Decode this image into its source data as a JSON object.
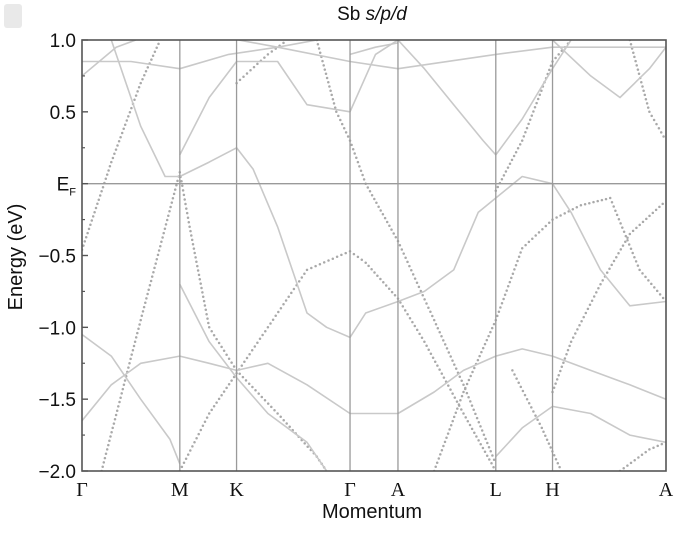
{
  "chart_data": {
    "type": "line",
    "title_main": "Sb ",
    "title_italic": "s/p/d",
    "xlabel": "Momentum",
    "ylabel": "Energy (eV)",
    "ylim": [
      -2.0,
      1.0
    ],
    "yticks": [
      {
        "value": 1.0,
        "label": "1.0"
      },
      {
        "value": 0.5,
        "label": "0.5"
      },
      {
        "value": 0.0,
        "label": "E",
        "sub": "F"
      },
      {
        "value": -0.5,
        "label": "−0.5"
      },
      {
        "value": -1.0,
        "label": "−1.0"
      },
      {
        "value": -1.5,
        "label": "−1.5"
      },
      {
        "value": -2.0,
        "label": "−2.0"
      }
    ],
    "kpoints": [
      {
        "label": "Γ",
        "x": 0.0
      },
      {
        "label": "M",
        "x": 1.0
      },
      {
        "label": "K",
        "x": 1.58
      },
      {
        "label": "Γ",
        "x": 2.74
      },
      {
        "label": "A",
        "x": 3.23
      },
      {
        "label": "L",
        "x": 4.23
      },
      {
        "label": "H",
        "x": 4.81
      },
      {
        "label": "A",
        "x": 5.97
      }
    ],
    "fermi_level": 0.0,
    "bands": [
      {
        "style": "dot",
        "points": [
          [
            0,
            -0.46
          ],
          [
            0.3,
            0.15
          ],
          [
            0.6,
            0.7
          ],
          [
            0.8,
            1.0
          ]
        ]
      },
      {
        "style": "dot",
        "points": [
          [
            0.2,
            -2.0
          ],
          [
            0.6,
            -0.95
          ],
          [
            1.0,
            0.08
          ],
          [
            1.1,
            -0.3
          ],
          [
            1.3,
            -1.0
          ],
          [
            1.58,
            -1.3
          ],
          [
            2.0,
            -1.6
          ],
          [
            2.4,
            -1.9
          ],
          [
            2.5,
            -2.0
          ]
        ]
      },
      {
        "style": "dot",
        "points": [
          [
            1.0,
            -2.0
          ],
          [
            1.3,
            -1.6
          ],
          [
            1.58,
            -1.32
          ],
          [
            1.9,
            -1.0
          ],
          [
            2.3,
            -0.6
          ],
          [
            2.74,
            -0.47
          ],
          [
            2.9,
            -0.55
          ],
          [
            3.23,
            -0.8
          ],
          [
            3.5,
            -1.1
          ],
          [
            3.9,
            -1.6
          ],
          [
            4.23,
            -2.0
          ]
        ]
      },
      {
        "style": "dot",
        "points": [
          [
            1.58,
            0.7
          ],
          [
            1.9,
            0.9
          ],
          [
            2.1,
            1.0
          ]
        ]
      },
      {
        "style": "dot",
        "points": [
          [
            2.4,
            1.0
          ],
          [
            2.6,
            0.5
          ],
          [
            2.74,
            0.3
          ],
          [
            2.9,
            0.0
          ],
          [
            3.23,
            -0.4
          ],
          [
            3.6,
            -0.95
          ],
          [
            3.9,
            -1.4
          ],
          [
            4.23,
            -1.95
          ]
        ]
      },
      {
        "style": "dot",
        "points": [
          [
            3.6,
            -2.0
          ],
          [
            3.9,
            -1.45
          ],
          [
            4.23,
            -0.95
          ],
          [
            4.5,
            -0.45
          ],
          [
            4.81,
            -0.25
          ],
          [
            5.1,
            -0.15
          ],
          [
            5.4,
            -0.1
          ],
          [
            5.7,
            -0.6
          ],
          [
            5.97,
            -0.82
          ]
        ]
      },
      {
        "style": "dot",
        "points": [
          [
            4.23,
            -0.05
          ],
          [
            4.5,
            0.3
          ],
          [
            4.81,
            0.85
          ],
          [
            5.0,
            1.0
          ]
        ]
      },
      {
        "style": "dot",
        "points": [
          [
            4.81,
            -1.45
          ],
          [
            5.0,
            -1.1
          ],
          [
            5.3,
            -0.7
          ],
          [
            5.6,
            -0.35
          ],
          [
            5.97,
            -0.12
          ]
        ]
      },
      {
        "style": "dot",
        "points": [
          [
            4.4,
            -1.3
          ],
          [
            4.7,
            -1.7
          ],
          [
            4.9,
            -2.0
          ]
        ]
      },
      {
        "style": "dot",
        "points": [
          [
            5.5,
            -2.0
          ],
          [
            5.8,
            -1.85
          ],
          [
            5.97,
            -1.8
          ]
        ]
      },
      {
        "style": "dot",
        "points": [
          [
            5.6,
            1.0
          ],
          [
            5.8,
            0.5
          ],
          [
            5.97,
            0.3
          ]
        ]
      },
      {
        "style": "line",
        "points": [
          [
            0,
            0.75
          ],
          [
            0.35,
            0.95
          ],
          [
            0.55,
            1.0
          ]
        ]
      },
      {
        "style": "line",
        "points": [
          [
            0,
            -1.05
          ],
          [
            0.3,
            -1.2
          ],
          [
            0.6,
            -1.5
          ],
          [
            0.9,
            -1.78
          ],
          [
            1.0,
            -1.95
          ]
        ]
      },
      {
        "style": "line",
        "points": [
          [
            0.3,
            1.0
          ],
          [
            0.6,
            0.4
          ],
          [
            0.85,
            0.05
          ],
          [
            1.0,
            0.05
          ],
          [
            1.3,
            0.15
          ],
          [
            1.58,
            0.25
          ],
          [
            1.75,
            0.1
          ],
          [
            2.0,
            -0.3
          ],
          [
            2.3,
            -0.9
          ],
          [
            2.5,
            -1.0
          ],
          [
            2.74,
            -1.07
          ],
          [
            2.9,
            -0.9
          ],
          [
            3.23,
            -0.82
          ],
          [
            3.5,
            -0.75
          ],
          [
            3.8,
            -0.6
          ],
          [
            4.05,
            -0.2
          ],
          [
            4.23,
            -0.1
          ],
          [
            4.5,
            0.05
          ],
          [
            4.81,
            0.0
          ],
          [
            5.0,
            -0.2
          ],
          [
            5.3,
            -0.6
          ],
          [
            5.6,
            -0.85
          ],
          [
            5.97,
            -0.82
          ]
        ]
      },
      {
        "style": "line",
        "points": [
          [
            0,
            -1.65
          ],
          [
            0.3,
            -1.4
          ],
          [
            0.6,
            -1.25
          ],
          [
            1.0,
            -1.2
          ],
          [
            1.3,
            -1.25
          ],
          [
            1.58,
            -1.3
          ],
          [
            1.9,
            -1.25
          ],
          [
            2.3,
            -1.4
          ],
          [
            2.74,
            -1.6
          ],
          [
            3.23,
            -1.6
          ],
          [
            3.6,
            -1.45
          ],
          [
            3.9,
            -1.3
          ],
          [
            4.23,
            -1.2
          ],
          [
            4.5,
            -1.15
          ],
          [
            4.81,
            -1.2
          ],
          [
            5.2,
            -1.3
          ],
          [
            5.6,
            -1.4
          ],
          [
            5.97,
            -1.5
          ]
        ]
      },
      {
        "style": "line",
        "points": [
          [
            1.0,
            -0.7
          ],
          [
            1.3,
            -1.1
          ],
          [
            1.58,
            -1.35
          ],
          [
            1.9,
            -1.6
          ],
          [
            2.3,
            -1.8
          ],
          [
            2.5,
            -2.0
          ]
        ]
      },
      {
        "style": "line",
        "points": [
          [
            1.0,
            0.2
          ],
          [
            1.3,
            0.6
          ],
          [
            1.58,
            0.85
          ],
          [
            2.0,
            0.85
          ],
          [
            2.3,
            0.55
          ],
          [
            2.74,
            0.5
          ],
          [
            3.0,
            0.9
          ],
          [
            3.23,
            1.0
          ]
        ]
      },
      {
        "style": "line",
        "points": [
          [
            1.6,
            1.0
          ],
          [
            2.0,
            0.95
          ],
          [
            2.4,
            1.0
          ]
        ]
      },
      {
        "style": "line",
        "points": [
          [
            0,
            0.85
          ],
          [
            0.5,
            0.85
          ],
          [
            1.0,
            0.8
          ],
          [
            1.5,
            0.9
          ],
          [
            2.0,
            0.95
          ],
          [
            2.74,
            0.85
          ],
          [
            3.23,
            0.8
          ],
          [
            4.23,
            0.9
          ],
          [
            4.81,
            0.95
          ],
          [
            5.97,
            0.95
          ]
        ]
      },
      {
        "style": "line",
        "points": [
          [
            3.23,
            1.0
          ],
          [
            3.5,
            0.8
          ],
          [
            3.8,
            0.55
          ],
          [
            4.1,
            0.3
          ],
          [
            4.23,
            0.2
          ],
          [
            4.5,
            0.45
          ],
          [
            4.81,
            0.8
          ],
          [
            5.0,
            1.0
          ]
        ]
      },
      {
        "style": "line",
        "points": [
          [
            2.74,
            0.9
          ],
          [
            3.0,
            0.95
          ],
          [
            3.23,
            0.98
          ]
        ]
      },
      {
        "style": "line",
        "points": [
          [
            4.81,
            1.0
          ],
          [
            5.2,
            0.75
          ],
          [
            5.5,
            0.6
          ],
          [
            5.8,
            0.8
          ],
          [
            5.97,
            0.95
          ]
        ]
      },
      {
        "style": "line",
        "points": [
          [
            4.23,
            -1.9
          ],
          [
            4.5,
            -1.7
          ],
          [
            4.81,
            -1.55
          ],
          [
            5.2,
            -1.6
          ],
          [
            5.6,
            -1.75
          ],
          [
            5.97,
            -1.8
          ]
        ]
      }
    ]
  }
}
